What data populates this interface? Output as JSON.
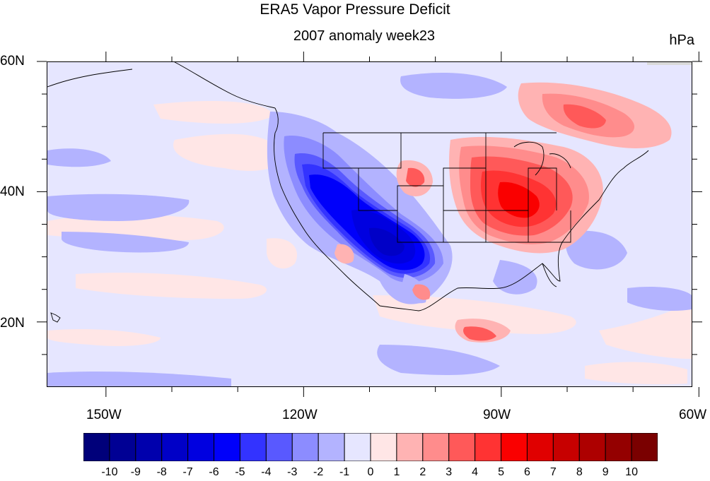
{
  "title": "ERA5 Vapor Pressure Deficit",
  "subtitle": "2007 anomaly week23",
  "units": "hPa",
  "lat_ticks": [
    "60N",
    "40N",
    "20N"
  ],
  "lon_ticks": [
    "150W",
    "120W",
    "90W",
    "60W"
  ],
  "map_extent": {
    "lon": [
      -159,
      -61
    ],
    "lat": [
      10,
      60
    ]
  },
  "colorbar": {
    "labels": [
      "-10",
      "-9",
      "-8",
      "-7",
      "-6",
      "-5",
      "-4",
      "-3",
      "-2",
      "-1",
      "0",
      "1",
      "2",
      "3",
      "4",
      "5",
      "6",
      "7",
      "8",
      "9",
      "10"
    ],
    "colors": [
      "#00007a",
      "#000094",
      "#0000ad",
      "#0000c7",
      "#0000e0",
      "#0000fa",
      "#3333ff",
      "#5959ff",
      "#8c8cff",
      "#b3b3ff",
      "#e6e6ff",
      "#ffe6e6",
      "#ffb3b3",
      "#ff8c8c",
      "#ff5959",
      "#ff3333",
      "#fa0000",
      "#e00000",
      "#c70000",
      "#ad0000",
      "#940000",
      "#7a0000"
    ]
  },
  "colors": {
    "neutral_negative": "#e6e6ff",
    "land_outline": "#000000"
  }
}
